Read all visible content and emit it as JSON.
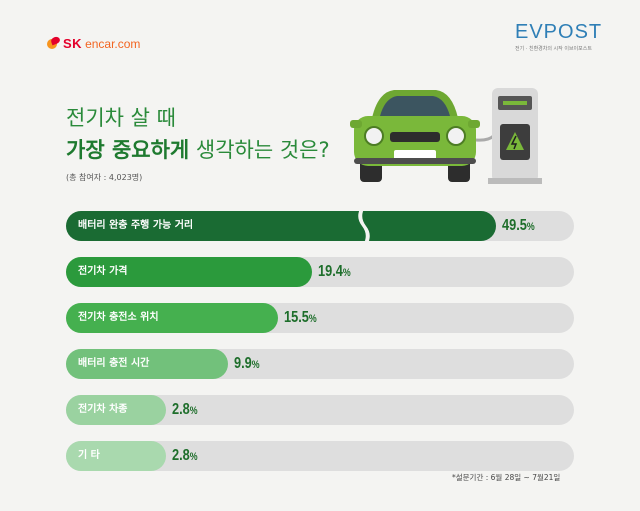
{
  "brand": {
    "sk": "SK",
    "domain": "encar.com"
  },
  "evpost": {
    "title": "EVPOST",
    "subtitle": "전기 · 친환경차의 시작 이브이포스트"
  },
  "heading": {
    "line1": "전기차 살 때",
    "line2_bold": "가장 중요하게",
    "line2_rest": " 생각하는 것은?",
    "participants": "(총 참여자 : 4,023명)"
  },
  "colors": [
    "#1a6b33",
    "#2b9a3c",
    "#45b04f",
    "#72c17b",
    "#9ad2a0",
    "#a9d9ae"
  ],
  "chart_data": {
    "type": "bar",
    "orientation": "horizontal",
    "categories": [
      "배터리 완충 주행 가능 거리",
      "전기차 가격",
      "전기차 충전소 위치",
      "배터리 충전 시간",
      "전기차 차종",
      "기 타"
    ],
    "values": [
      49.5,
      19.4,
      15.5,
      9.9,
      2.8,
      2.8
    ],
    "value_labels": [
      "49.5",
      "19.4",
      "15.5",
      "9.9",
      "2.8",
      "2.8"
    ],
    "unit": "%",
    "axis_break": true
  },
  "footnote": "*설문기간 : 6월 28일 ~ 7월21일"
}
